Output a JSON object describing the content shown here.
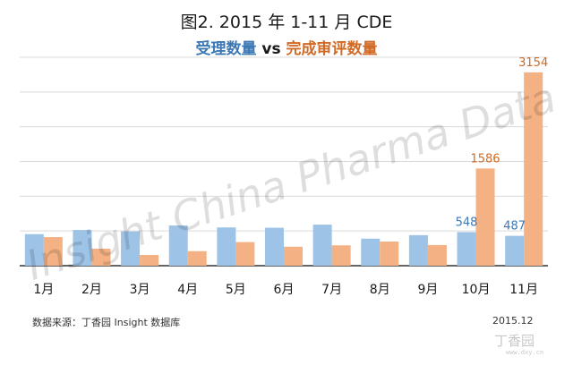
{
  "title": "图2. 2015 年 1-11 月 CDE",
  "subtitle": {
    "part1": "受理数量",
    "vs": " vs ",
    "part2": "完成审评数量"
  },
  "source": "数据来源：丁香园 Insight 数据库",
  "date": "2015.12",
  "watermark": "Insight China Pharma Data",
  "brand": {
    "name": "丁香园",
    "url": "www.dxy.cn"
  },
  "colors": {
    "series1": "#9DC3E6",
    "series2": "#F4B183",
    "label1": "#3C78B4",
    "label2": "#D06A27",
    "grid": "#D9D9D9",
    "axis": "#333333"
  },
  "chart_data": {
    "type": "bar",
    "categories": [
      "1月",
      "2月",
      "3月",
      "4月",
      "5月",
      "6月",
      "7月",
      "8月",
      "9月",
      "10月",
      "11月"
    ],
    "series": [
      {
        "name": "受理数量",
        "values": [
          515,
          583,
          559,
          656,
          624,
          619,
          670,
          441,
          498,
          548,
          487
        ],
        "data_labels": [
          null,
          null,
          null,
          null,
          null,
          null,
          null,
          null,
          null,
          "548",
          "487"
        ]
      },
      {
        "name": "完成审评数量",
        "values": [
          466,
          277,
          175,
          237,
          385,
          310,
          332,
          394,
          337,
          1586,
          3154
        ],
        "data_labels": [
          null,
          null,
          null,
          null,
          null,
          null,
          null,
          null,
          null,
          "1586",
          "3154"
        ]
      }
    ],
    "ylim": [
      0,
      3400
    ],
    "grid": true,
    "legend": "subtitle"
  }
}
